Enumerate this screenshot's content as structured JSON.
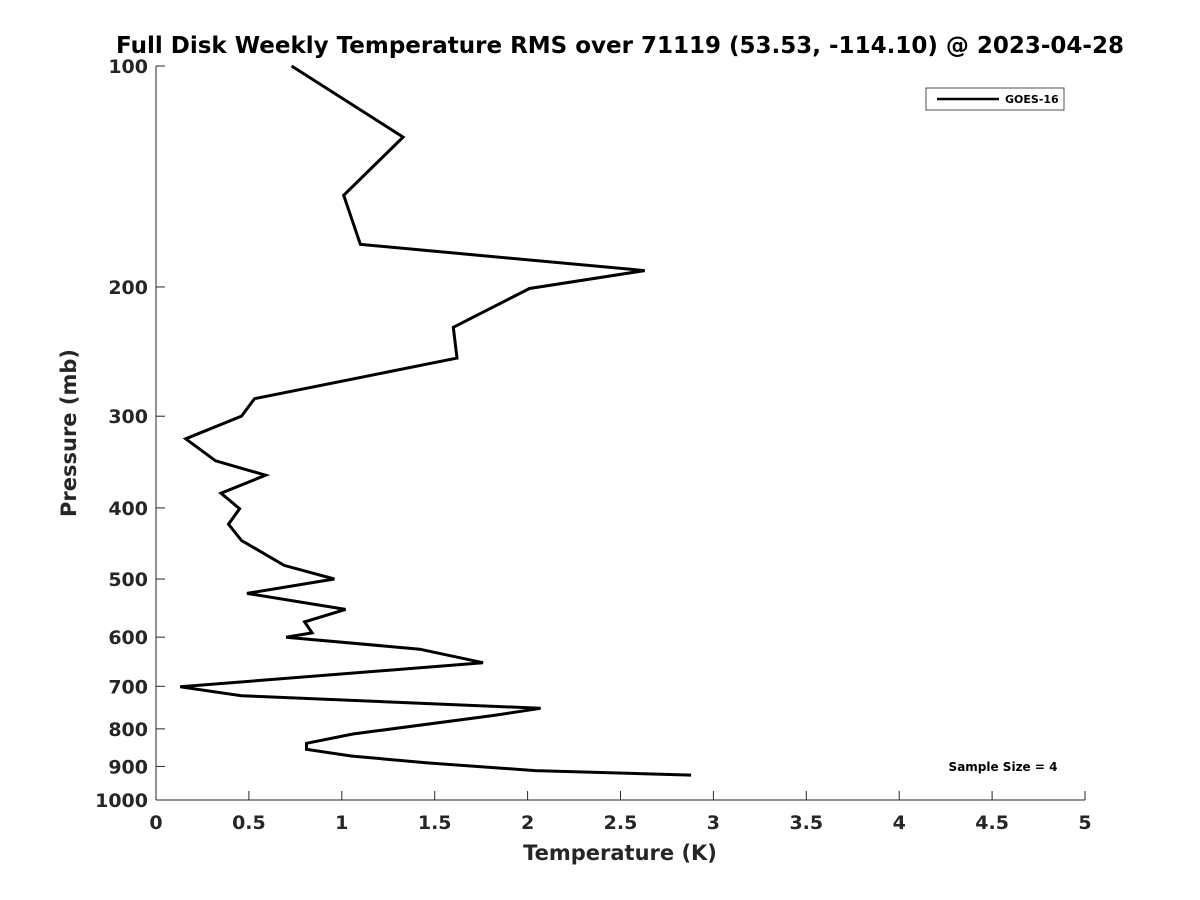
{
  "chart_data": {
    "type": "line",
    "title": "Full Disk Weekly Temperature RMS over 71119 (53.53, -114.10) @ 2023-04-28",
    "xlabel": "Temperature (K)",
    "ylabel": "Pressure (mb)",
    "xlim": [
      0,
      5
    ],
    "ylim": [
      1000,
      100
    ],
    "yscale": "log",
    "y_reversed": true,
    "grid": false,
    "legend_position": "top-right",
    "x_ticks": [
      0,
      0.5,
      1,
      1.5,
      2,
      2.5,
      3,
      3.5,
      4,
      4.5,
      5
    ],
    "x_tick_labels": [
      "0",
      "0.5",
      "1",
      "1.5",
      "2",
      "2.5",
      "3",
      "3.5",
      "4",
      "4.5",
      "5"
    ],
    "y_ticks": [
      100,
      200,
      300,
      400,
      500,
      600,
      700,
      800,
      900,
      1000
    ],
    "y_tick_labels": [
      "100",
      "200",
      "300",
      "400",
      "500",
      "600",
      "700",
      "800",
      "900",
      "1000"
    ],
    "series": [
      {
        "name": "GOES-16",
        "color": "#000000",
        "points": [
          [
            0.73,
            100
          ],
          [
            1.33,
            125
          ],
          [
            1.01,
            150
          ],
          [
            1.1,
            175
          ],
          [
            2.63,
            190
          ],
          [
            2.01,
            201
          ],
          [
            1.6,
            227
          ],
          [
            1.62,
            250
          ],
          [
            0.53,
            284
          ],
          [
            0.46,
            300
          ],
          [
            0.16,
            322
          ],
          [
            0.32,
            345
          ],
          [
            0.59,
            361
          ],
          [
            0.35,
            382
          ],
          [
            0.45,
            401
          ],
          [
            0.39,
            421
          ],
          [
            0.46,
            443
          ],
          [
            0.69,
            479
          ],
          [
            0.96,
            500
          ],
          [
            0.49,
            523
          ],
          [
            1.02,
            550
          ],
          [
            0.8,
            572
          ],
          [
            0.84,
            592
          ],
          [
            0.7,
            600
          ],
          [
            1.42,
            623
          ],
          [
            1.76,
            650
          ],
          [
            0.13,
            701
          ],
          [
            0.46,
            721
          ],
          [
            2.07,
            750
          ],
          [
            1.82,
            767
          ],
          [
            1.06,
            813
          ],
          [
            0.81,
            837
          ],
          [
            0.81,
            853
          ],
          [
            1.05,
            871
          ],
          [
            1.46,
            890
          ],
          [
            2.04,
            912
          ],
          [
            2.88,
            925
          ]
        ]
      }
    ],
    "annotations": [
      "Sample Size = 4"
    ]
  }
}
